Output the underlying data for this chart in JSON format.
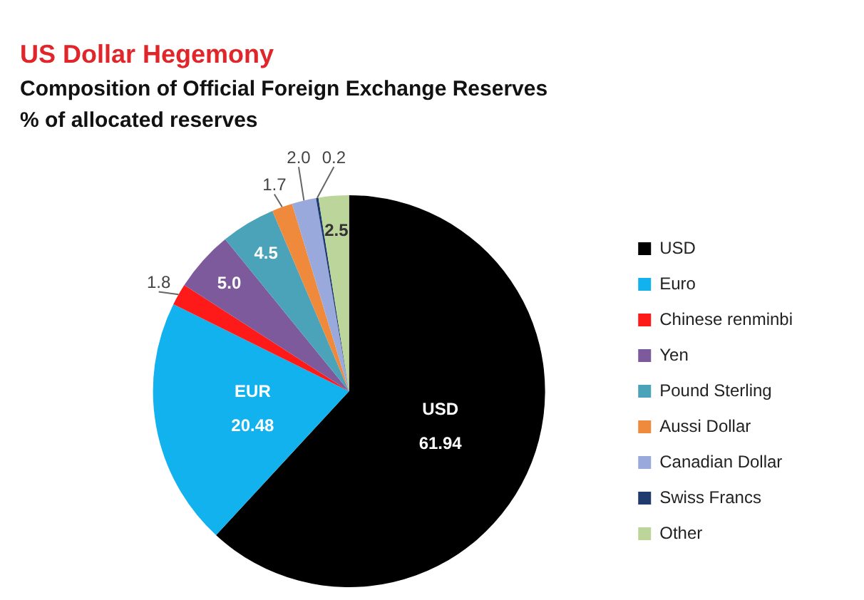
{
  "chart_data": {
    "type": "pie",
    "title": "US Dollar Hegemony",
    "subtitle": "Composition of Official Foreign Exchange Reserves\n% of allocated reserves",
    "categories": [
      "USD",
      "Euro",
      "Chinese renminbi",
      "Yen",
      "Pound Sterling",
      "Aussi Dollar",
      "Canadian Dollar",
      "Swiss Francs",
      "Other"
    ],
    "values": [
      61.94,
      20.48,
      1.8,
      5.0,
      4.5,
      1.7,
      2.0,
      0.2,
      2.5
    ],
    "value_labels": [
      "61.94",
      "20.48",
      "1.8",
      "5.0",
      "4.5",
      "1.7",
      "2.0",
      "0.2",
      "2.5"
    ],
    "colors": [
      "#000000",
      "#12b2ef",
      "#ff1a1a",
      "#7d5a9c",
      "#4aa3b8",
      "#ef8a3c",
      "#9aa9dc",
      "#1f3a6e",
      "#bcd59a"
    ],
    "annotations": [
      {
        "text": "USD",
        "x": "USD"
      },
      {
        "text": "EUR",
        "x": "Euro"
      }
    ],
    "legend": "right"
  }
}
